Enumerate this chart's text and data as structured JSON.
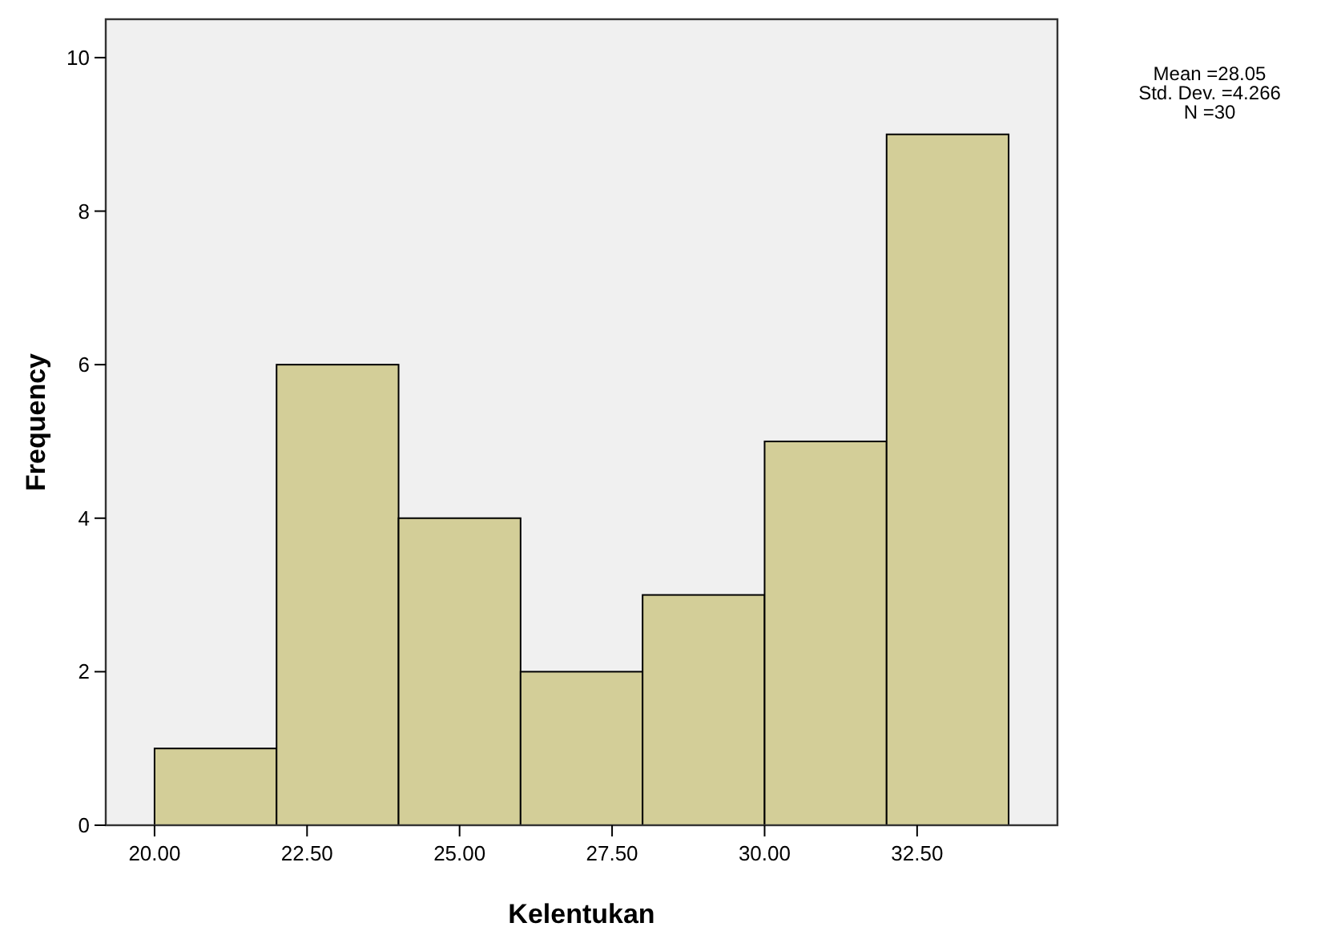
{
  "chart_data": {
    "type": "histogram",
    "xlabel": "Kelentukan",
    "ylabel": "Frequency",
    "bins": [
      20,
      22,
      24,
      26,
      28,
      30,
      32,
      34
    ],
    "values": [
      1,
      6,
      4,
      2,
      3,
      5,
      9
    ],
    "color": "#d3ce98",
    "xlim": [
      19.2,
      34.8
    ],
    "xticks": [
      {
        "value": 20,
        "label": "20.00"
      },
      {
        "value": 22.5,
        "label": "22.50"
      },
      {
        "value": 25,
        "label": "25.00"
      },
      {
        "value": 27.5,
        "label": "27.50"
      },
      {
        "value": 30,
        "label": "30.00"
      },
      {
        "value": 32.5,
        "label": "32.50"
      }
    ],
    "ylim": [
      0,
      10.5
    ],
    "yticks": [
      0,
      2,
      4,
      6,
      8,
      10
    ],
    "grid": false,
    "annotations": [
      "Mean =28.05",
      "Std. Dev. =4.266",
      "N =30"
    ]
  }
}
